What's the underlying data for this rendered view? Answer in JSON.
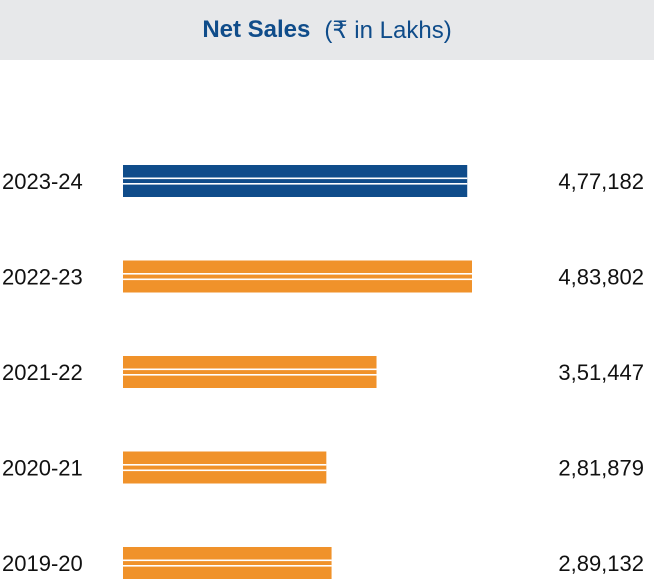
{
  "chart_data": {
    "type": "bar",
    "orientation": "horizontal",
    "title": "Net Sales",
    "subtitle": "(₹ in Lakhs)",
    "categories": [
      "2023-24",
      "2022-23",
      "2021-22",
      "2020-21",
      "2019-20"
    ],
    "values": [
      477182,
      483802,
      351447,
      281879,
      289132
    ],
    "value_labels": [
      "4,77,182",
      "4,83,802",
      "3,51,447",
      "2,81,879",
      "2,89,132"
    ],
    "highlight_index": 0,
    "colors": {
      "highlight": "#0f4c8a",
      "default": "#f0922a",
      "stripe": "#ffffff",
      "highlight_label": "#0f4c8a",
      "label": "#111111",
      "header_bg": "#e7e8ea"
    },
    "xlabel": "",
    "ylabel": "",
    "grid": false,
    "legend": "none"
  }
}
